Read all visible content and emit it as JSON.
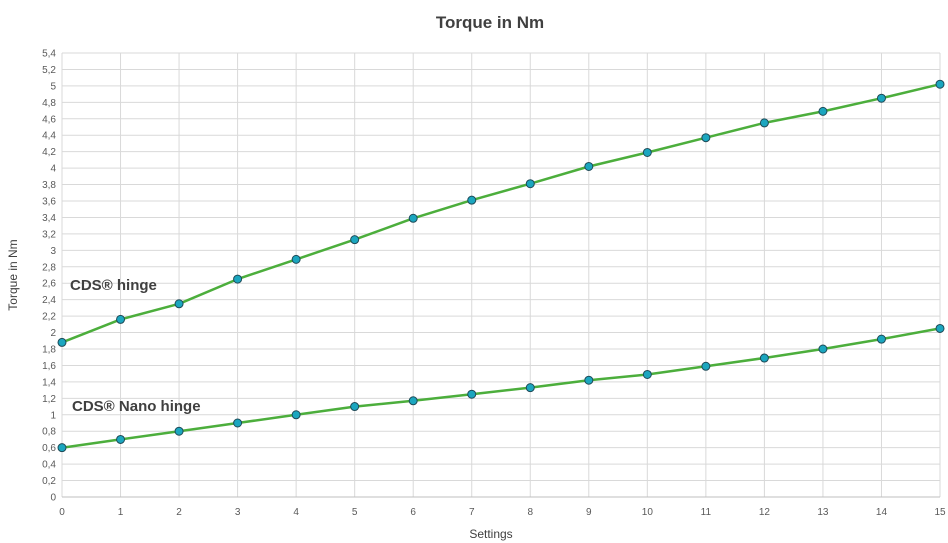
{
  "chart_data": {
    "type": "line",
    "title": "Torque in Nm",
    "xlabel": "Settings",
    "ylabel": "Torque in Nm",
    "x": [
      0,
      1,
      2,
      3,
      4,
      5,
      6,
      7,
      8,
      9,
      10,
      11,
      12,
      13,
      14,
      15
    ],
    "xlim": [
      0,
      15
    ],
    "ylim": [
      0,
      5.4
    ],
    "x_ticks": [
      "0",
      "1",
      "2",
      "3",
      "4",
      "5",
      "6",
      "7",
      "8",
      "9",
      "10",
      "11",
      "12",
      "13",
      "14",
      "15"
    ],
    "y_ticks": [
      "0",
      "0,2",
      "0,4",
      "0,6",
      "0,8",
      "1",
      "1,2",
      "1,4",
      "1,6",
      "1,8",
      "2",
      "2,2",
      "2,4",
      "2,6",
      "2,8",
      "3",
      "3,2",
      "3,4",
      "3,6",
      "3,8",
      "4",
      "4,2",
      "4,4",
      "4,6",
      "4,8",
      "5",
      "5,2",
      "5,4"
    ],
    "grid": true,
    "legend": "none",
    "series": [
      {
        "name": "CDS® hinge",
        "values": [
          1.88,
          2.16,
          2.35,
          2.65,
          2.89,
          3.13,
          3.39,
          3.61,
          3.81,
          4.02,
          4.19,
          4.37,
          4.55,
          4.69,
          4.85,
          5.02
        ]
      },
      {
        "name": "CDS® Nano hinge",
        "values": [
          0.6,
          0.7,
          0.8,
          0.9,
          1.0,
          1.1,
          1.17,
          1.25,
          1.33,
          1.42,
          1.49,
          1.59,
          1.69,
          1.8,
          1.92,
          2.05
        ]
      }
    ],
    "colors": {
      "line": "#4cae3c",
      "marker_fill": "#1ba6bf",
      "marker_stroke": "#1e4a57"
    }
  }
}
